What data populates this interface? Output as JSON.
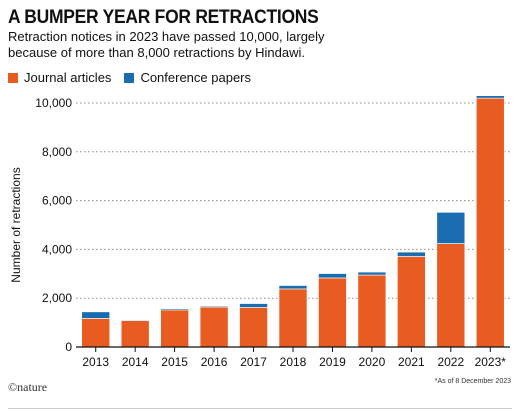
{
  "chart_data": {
    "type": "bar",
    "stacked": true,
    "title": "A BUMPER YEAR FOR RETRACTIONS",
    "subtitle": "Retraction notices in 2023 have passed 10,000, largely because of more than 8,000 retractions by Hindawi.",
    "categories": [
      "2013",
      "2014",
      "2015",
      "2016",
      "2017",
      "2018",
      "2019",
      "2020",
      "2021",
      "2022",
      "2023*"
    ],
    "series": [
      {
        "name": "Journal articles",
        "color": "#e85c22",
        "values": [
          1170,
          1080,
          1520,
          1640,
          1620,
          2380,
          2830,
          2950,
          3710,
          4240,
          10200
        ]
      },
      {
        "name": "Conference papers",
        "color": "#1a6db0",
        "values": [
          270,
          30,
          50,
          40,
          160,
          140,
          180,
          120,
          180,
          1280,
          100
        ]
      }
    ],
    "ylabel": "Number of retractions",
    "ylim": [
      0,
      10000
    ],
    "yticks": [
      0,
      2000,
      4000,
      6000,
      8000,
      10000
    ],
    "ytick_labels": [
      "0",
      "2,000",
      "4,000",
      "6,000",
      "8,000",
      "10,000"
    ],
    "grid": true,
    "legend_position": "top-left"
  },
  "branding": {
    "logo": "©nature"
  },
  "footnote": "*As of 8 December 2023"
}
